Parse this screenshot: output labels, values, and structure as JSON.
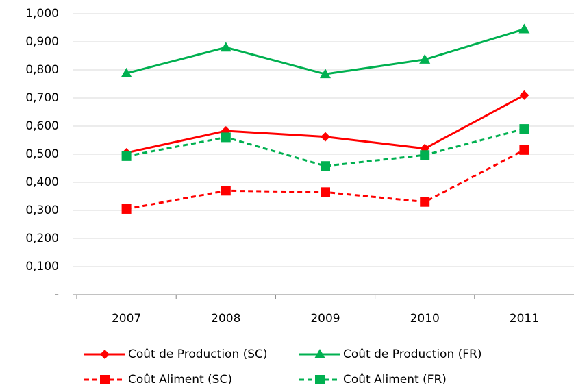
{
  "chart_data": {
    "type": "line",
    "categories": [
      "2007",
      "2008",
      "2009",
      "2010",
      "2011"
    ],
    "series": [
      {
        "name": "Coût de Production (SC)",
        "color": "#ff0000",
        "line_style": "solid",
        "marker": "diamond",
        "values": [
          0.505,
          0.583,
          0.562,
          0.52,
          0.71
        ]
      },
      {
        "name": "Coût de Production (FR)",
        "color": "#00b050",
        "line_style": "solid",
        "marker": "triangle",
        "values": [
          0.788,
          0.88,
          0.785,
          0.837,
          0.945
        ]
      },
      {
        "name": "Coût Aliment (SC)",
        "color": "#ff0000",
        "line_style": "dashed",
        "marker": "square",
        "values": [
          0.305,
          0.37,
          0.365,
          0.33,
          0.515
        ]
      },
      {
        "name": "Coût Aliment (FR)",
        "color": "#00b050",
        "line_style": "dashed",
        "marker": "square",
        "values": [
          0.493,
          0.56,
          0.458,
          0.497,
          0.59
        ]
      }
    ],
    "ylim": [
      0,
      1
    ],
    "yticks": [
      {
        "value": 0,
        "label": "-"
      },
      {
        "value": 0.1,
        "label": "0,100"
      },
      {
        "value": 0.2,
        "label": "0,200"
      },
      {
        "value": 0.3,
        "label": "0,300"
      },
      {
        "value": 0.4,
        "label": "0,400"
      },
      {
        "value": 0.5,
        "label": "0,500"
      },
      {
        "value": 0.6,
        "label": "0,600"
      },
      {
        "value": 0.7,
        "label": "0,700"
      },
      {
        "value": 0.8,
        "label": "0,800"
      },
      {
        "value": 0.9,
        "label": "0,900"
      },
      {
        "value": 1,
        "label": "1,000"
      }
    ],
    "grid": true,
    "legend": "bottom"
  }
}
